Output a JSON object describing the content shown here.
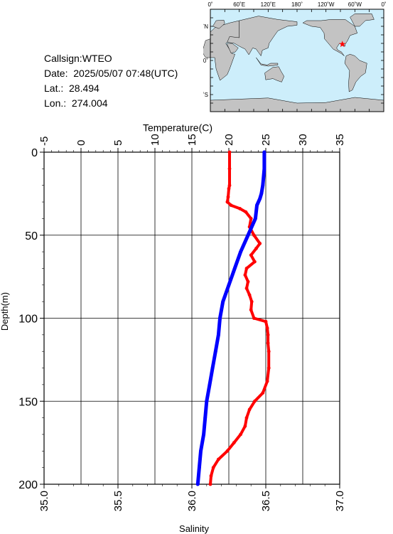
{
  "station": {
    "callsign": "Callsign:WTEO",
    "date": "Date:  2025/05/07 07:48(UTC)",
    "lat": "Lat.:  28.494",
    "lon": "Lon.:  274.004"
  },
  "map": {
    "lon_labels": [
      "0˚",
      "60˚E",
      "120˚E",
      "180˚",
      "120˚W",
      "60˚W",
      "0˚"
    ],
    "lat_labels": [
      "60˚N",
      "0˚",
      "60˚S"
    ],
    "ocean_color": "#cdeefb",
    "land_color": "#c3c3c3",
    "marker": {
      "lon": 274.004,
      "lat": 28.494,
      "color": "#ff0000"
    }
  },
  "chart_data": {
    "type": "line",
    "title": "",
    "ylabel": "Depth(m)",
    "ylim": [
      0,
      200
    ],
    "yticks": [
      "0",
      "50",
      "100",
      "150",
      "200"
    ],
    "x_top": {
      "label": "Temperature(C)",
      "lim": [
        -5,
        35
      ],
      "ticks": [
        "-5",
        "0",
        "5",
        "10",
        "15",
        "20",
        "25",
        "30",
        "35"
      ]
    },
    "x_bottom": {
      "label": "Salinity",
      "lim": [
        35.0,
        37.0
      ],
      "ticks": [
        "35.0",
        "35.5",
        "36.0",
        "36.5",
        "37.0"
      ]
    },
    "series": [
      {
        "axis": "top",
        "color": "#ff0000",
        "depth": [
          0,
          10,
          20,
          22,
          27,
          30,
          32,
          34,
          36,
          40,
          45,
          50,
          55,
          58,
          62,
          66,
          70,
          74,
          78,
          82,
          86,
          90,
          95,
          100,
          102,
          106,
          110,
          115,
          120,
          130,
          138,
          145,
          150,
          155,
          160,
          165,
          170,
          175,
          180,
          185,
          190,
          195,
          200
        ],
        "values": [
          20.1,
          20.1,
          20.1,
          20.0,
          19.9,
          19.8,
          20.3,
          21.5,
          22.3,
          23.0,
          22.8,
          23.4,
          24.2,
          23.7,
          23.0,
          23.5,
          22.4,
          22.2,
          22.6,
          22.4,
          22.8,
          23.1,
          23.0,
          23.4,
          25.0,
          25.2,
          25.3,
          25.3,
          25.4,
          25.4,
          25.2,
          24.6,
          23.5,
          22.8,
          22.4,
          22.2,
          21.6,
          20.7,
          19.8,
          18.6,
          17.9,
          17.6,
          17.5
        ]
      },
      {
        "axis": "bottom",
        "color": "#0000ff",
        "depth": [
          0,
          10,
          20,
          25,
          28,
          32,
          40,
          50,
          60,
          70,
          80,
          90,
          100,
          110,
          120,
          130,
          140,
          150,
          160,
          170,
          180,
          190,
          200
        ],
        "values": [
          36.49,
          36.49,
          36.48,
          36.47,
          36.46,
          36.44,
          36.43,
          36.38,
          36.33,
          36.29,
          36.25,
          36.21,
          36.19,
          36.18,
          36.16,
          36.14,
          36.12,
          36.1,
          36.09,
          36.08,
          36.06,
          36.05,
          36.04
        ]
      }
    ]
  }
}
